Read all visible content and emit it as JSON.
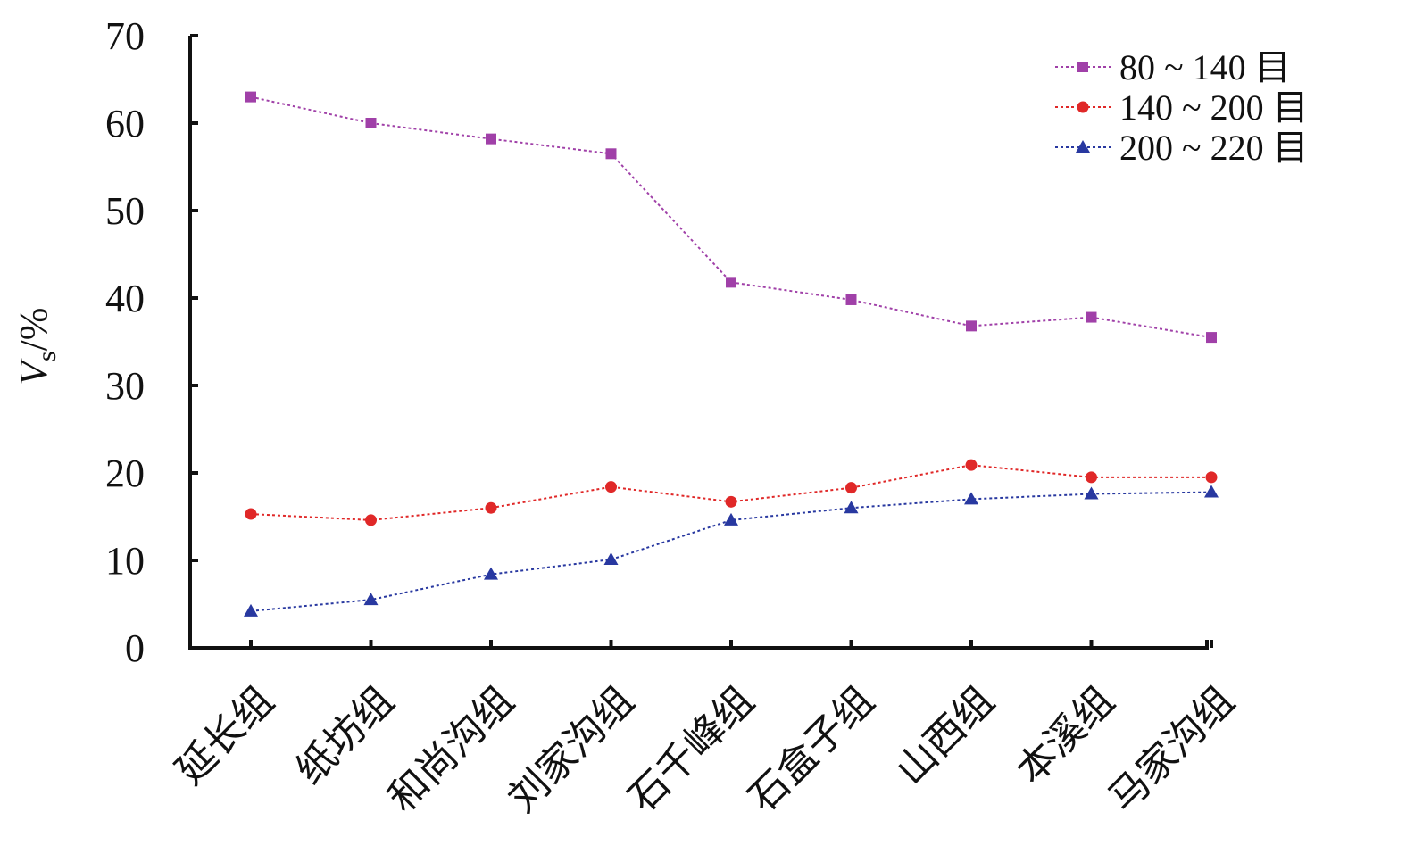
{
  "chart_data": {
    "type": "line",
    "ylabel": {
      "symbol": "V",
      "subscript": "s",
      "unit": "/%"
    },
    "xlabel": "",
    "ylim": [
      0,
      70
    ],
    "yticks": [
      0,
      10,
      20,
      30,
      40,
      50,
      60,
      70
    ],
    "categories": [
      "延长组",
      "纸坊组",
      "和尚沟组",
      "刘家沟组",
      "石千峰组",
      "石盒子组",
      "山西组",
      "本溪组",
      "马家沟组"
    ],
    "legend_position": "top-right",
    "grid": false,
    "series": [
      {
        "name": "80 ~ 140 目",
        "color": "#a040a8",
        "marker": "square",
        "values": [
          63.0,
          60.0,
          58.2,
          56.5,
          41.8,
          39.8,
          36.8,
          37.8,
          35.5
        ]
      },
      {
        "name": "140 ~ 200 目",
        "color": "#e02828",
        "marker": "circle",
        "values": [
          15.3,
          14.6,
          16.0,
          18.4,
          16.7,
          18.3,
          20.9,
          19.5,
          19.5
        ]
      },
      {
        "name": "200 ~ 220 目",
        "color": "#2838a0",
        "marker": "triangle",
        "values": [
          4.2,
          5.5,
          8.4,
          10.1,
          14.6,
          16.0,
          17.0,
          17.6,
          17.8
        ]
      }
    ]
  }
}
